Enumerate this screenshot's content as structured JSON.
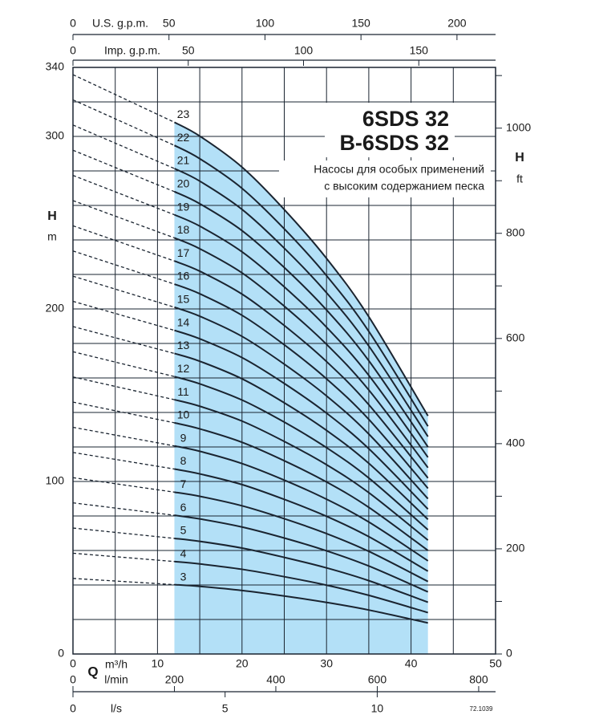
{
  "chart_data": {
    "type": "line",
    "title": "6SDS 32",
    "title2": "B-6SDS 32",
    "subtitle": [
      "Насосы для особых применений",
      "с высоким содержанием песка"
    ],
    "x_symbol": "Q",
    "xlabel": "m³/h",
    "xlim": [
      0,
      50
    ],
    "xticks": [
      0,
      10,
      20,
      30,
      40,
      50
    ],
    "xgrid": [
      5,
      15,
      25,
      35,
      45
    ],
    "y_symbol": "H",
    "ylabel": "m",
    "ylim": [
      0,
      340
    ],
    "yticks": [
      0,
      100,
      200,
      300,
      340
    ],
    "ygrid": [
      20,
      40,
      60,
      80,
      120,
      140,
      160,
      180,
      220,
      240,
      260,
      280,
      320
    ],
    "y2_symbol": "H",
    "y2label": "ft",
    "y2lim": [
      0,
      1115.5
    ],
    "y2ticks": [
      0,
      200,
      400,
      600,
      800,
      1000
    ],
    "y2minor": [
      100,
      300,
      500,
      700,
      900,
      1100
    ],
    "extra_x_axes": [
      {
        "label": "U.S. g.p.m.",
        "lim": [
          0,
          220.1
        ],
        "ticks": [
          0,
          50,
          100,
          150,
          200
        ]
      },
      {
        "label": "Imp. g.p.m.",
        "lim": [
          0,
          183.3
        ],
        "ticks": [
          0,
          50,
          100,
          150
        ]
      },
      {
        "label": "l/min",
        "lim": [
          0,
          833.3
        ],
        "ticks": [
          0,
          200,
          400,
          600,
          800
        ]
      },
      {
        "label": "l/s",
        "lim": [
          0,
          13.89
        ],
        "ticks": [
          0,
          5,
          10
        ]
      }
    ],
    "code": "72.1039",
    "fill_color": "#b3e0f7",
    "line_color": "#1a2430",
    "x": [
      12,
      15,
      20,
      25,
      30,
      35,
      42
    ],
    "series": [
      {
        "name": "3",
        "shutoff": 43.8,
        "values": [
          40.2,
          39.2,
          36.8,
          33.6,
          29.9,
          25.5,
          18.0
        ]
      },
      {
        "name": "4",
        "shutoff": 58.4,
        "values": [
          53.6,
          52.2,
          49.1,
          44.8,
          39.9,
          34.0,
          24.0
        ]
      },
      {
        "name": "5",
        "shutoff": 73.0,
        "values": [
          67.0,
          65.3,
          61.4,
          56.0,
          49.9,
          42.5,
          30.0
        ]
      },
      {
        "name": "6",
        "shutoff": 87.6,
        "values": [
          80.4,
          78.3,
          73.6,
          67.2,
          59.8,
          51.0,
          36.0
        ]
      },
      {
        "name": "7",
        "shutoff": 102.2,
        "values": [
          93.8,
          91.4,
          85.9,
          78.4,
          69.8,
          59.5,
          42.0
        ]
      },
      {
        "name": "8",
        "shutoff": 116.8,
        "values": [
          107.2,
          104.4,
          98.2,
          89.6,
          79.8,
          68.0,
          48.0
        ]
      },
      {
        "name": "9",
        "shutoff": 131.4,
        "values": [
          120.6,
          117.5,
          110.4,
          100.8,
          89.7,
          76.5,
          54.0
        ]
      },
      {
        "name": "10",
        "shutoff": 146.0,
        "values": [
          134.0,
          130.5,
          122.7,
          112.0,
          99.7,
          85.0,
          60.0
        ]
      },
      {
        "name": "11",
        "shutoff": 160.6,
        "values": [
          147.4,
          143.6,
          135.0,
          123.2,
          109.7,
          93.5,
          66.0
        ]
      },
      {
        "name": "12",
        "shutoff": 175.2,
        "values": [
          160.8,
          156.6,
          147.2,
          134.4,
          119.6,
          102.0,
          72.0
        ]
      },
      {
        "name": "13",
        "shutoff": 189.8,
        "values": [
          174.2,
          169.7,
          159.5,
          145.6,
          129.6,
          110.5,
          78.0
        ]
      },
      {
        "name": "14",
        "shutoff": 204.4,
        "values": [
          187.6,
          182.7,
          171.8,
          156.8,
          139.6,
          119.0,
          84.0
        ]
      },
      {
        "name": "15",
        "shutoff": 219.0,
        "values": [
          201.0,
          195.8,
          184.1,
          168.0,
          149.6,
          127.5,
          90.0
        ]
      },
      {
        "name": "16",
        "shutoff": 233.6,
        "values": [
          214.4,
          208.8,
          196.3,
          179.2,
          159.5,
          136.0,
          96.0
        ]
      },
      {
        "name": "17",
        "shutoff": 248.2,
        "values": [
          227.8,
          221.9,
          208.6,
          190.4,
          169.5,
          144.5,
          102.0
        ]
      },
      {
        "name": "18",
        "shutoff": 262.8,
        "values": [
          241.2,
          234.9,
          220.9,
          201.6,
          179.5,
          153.0,
          108.0
        ]
      },
      {
        "name": "19",
        "shutoff": 277.4,
        "values": [
          254.6,
          248.0,
          233.1,
          212.8,
          189.4,
          161.5,
          114.0
        ]
      },
      {
        "name": "20",
        "shutoff": 292.0,
        "values": [
          268.0,
          261.0,
          245.4,
          224.0,
          199.4,
          170.0,
          120.0
        ]
      },
      {
        "name": "21",
        "shutoff": 306.6,
        "values": [
          281.4,
          274.1,
          257.7,
          235.2,
          209.4,
          178.5,
          126.0
        ]
      },
      {
        "name": "22",
        "shutoff": 321.2,
        "values": [
          294.8,
          287.1,
          269.9,
          246.4,
          219.3,
          187.0,
          132.0
        ]
      },
      {
        "name": "23",
        "shutoff": 335.8,
        "values": [
          308.2,
          300.2,
          282.2,
          257.6,
          229.3,
          195.5,
          138.0
        ]
      }
    ]
  }
}
